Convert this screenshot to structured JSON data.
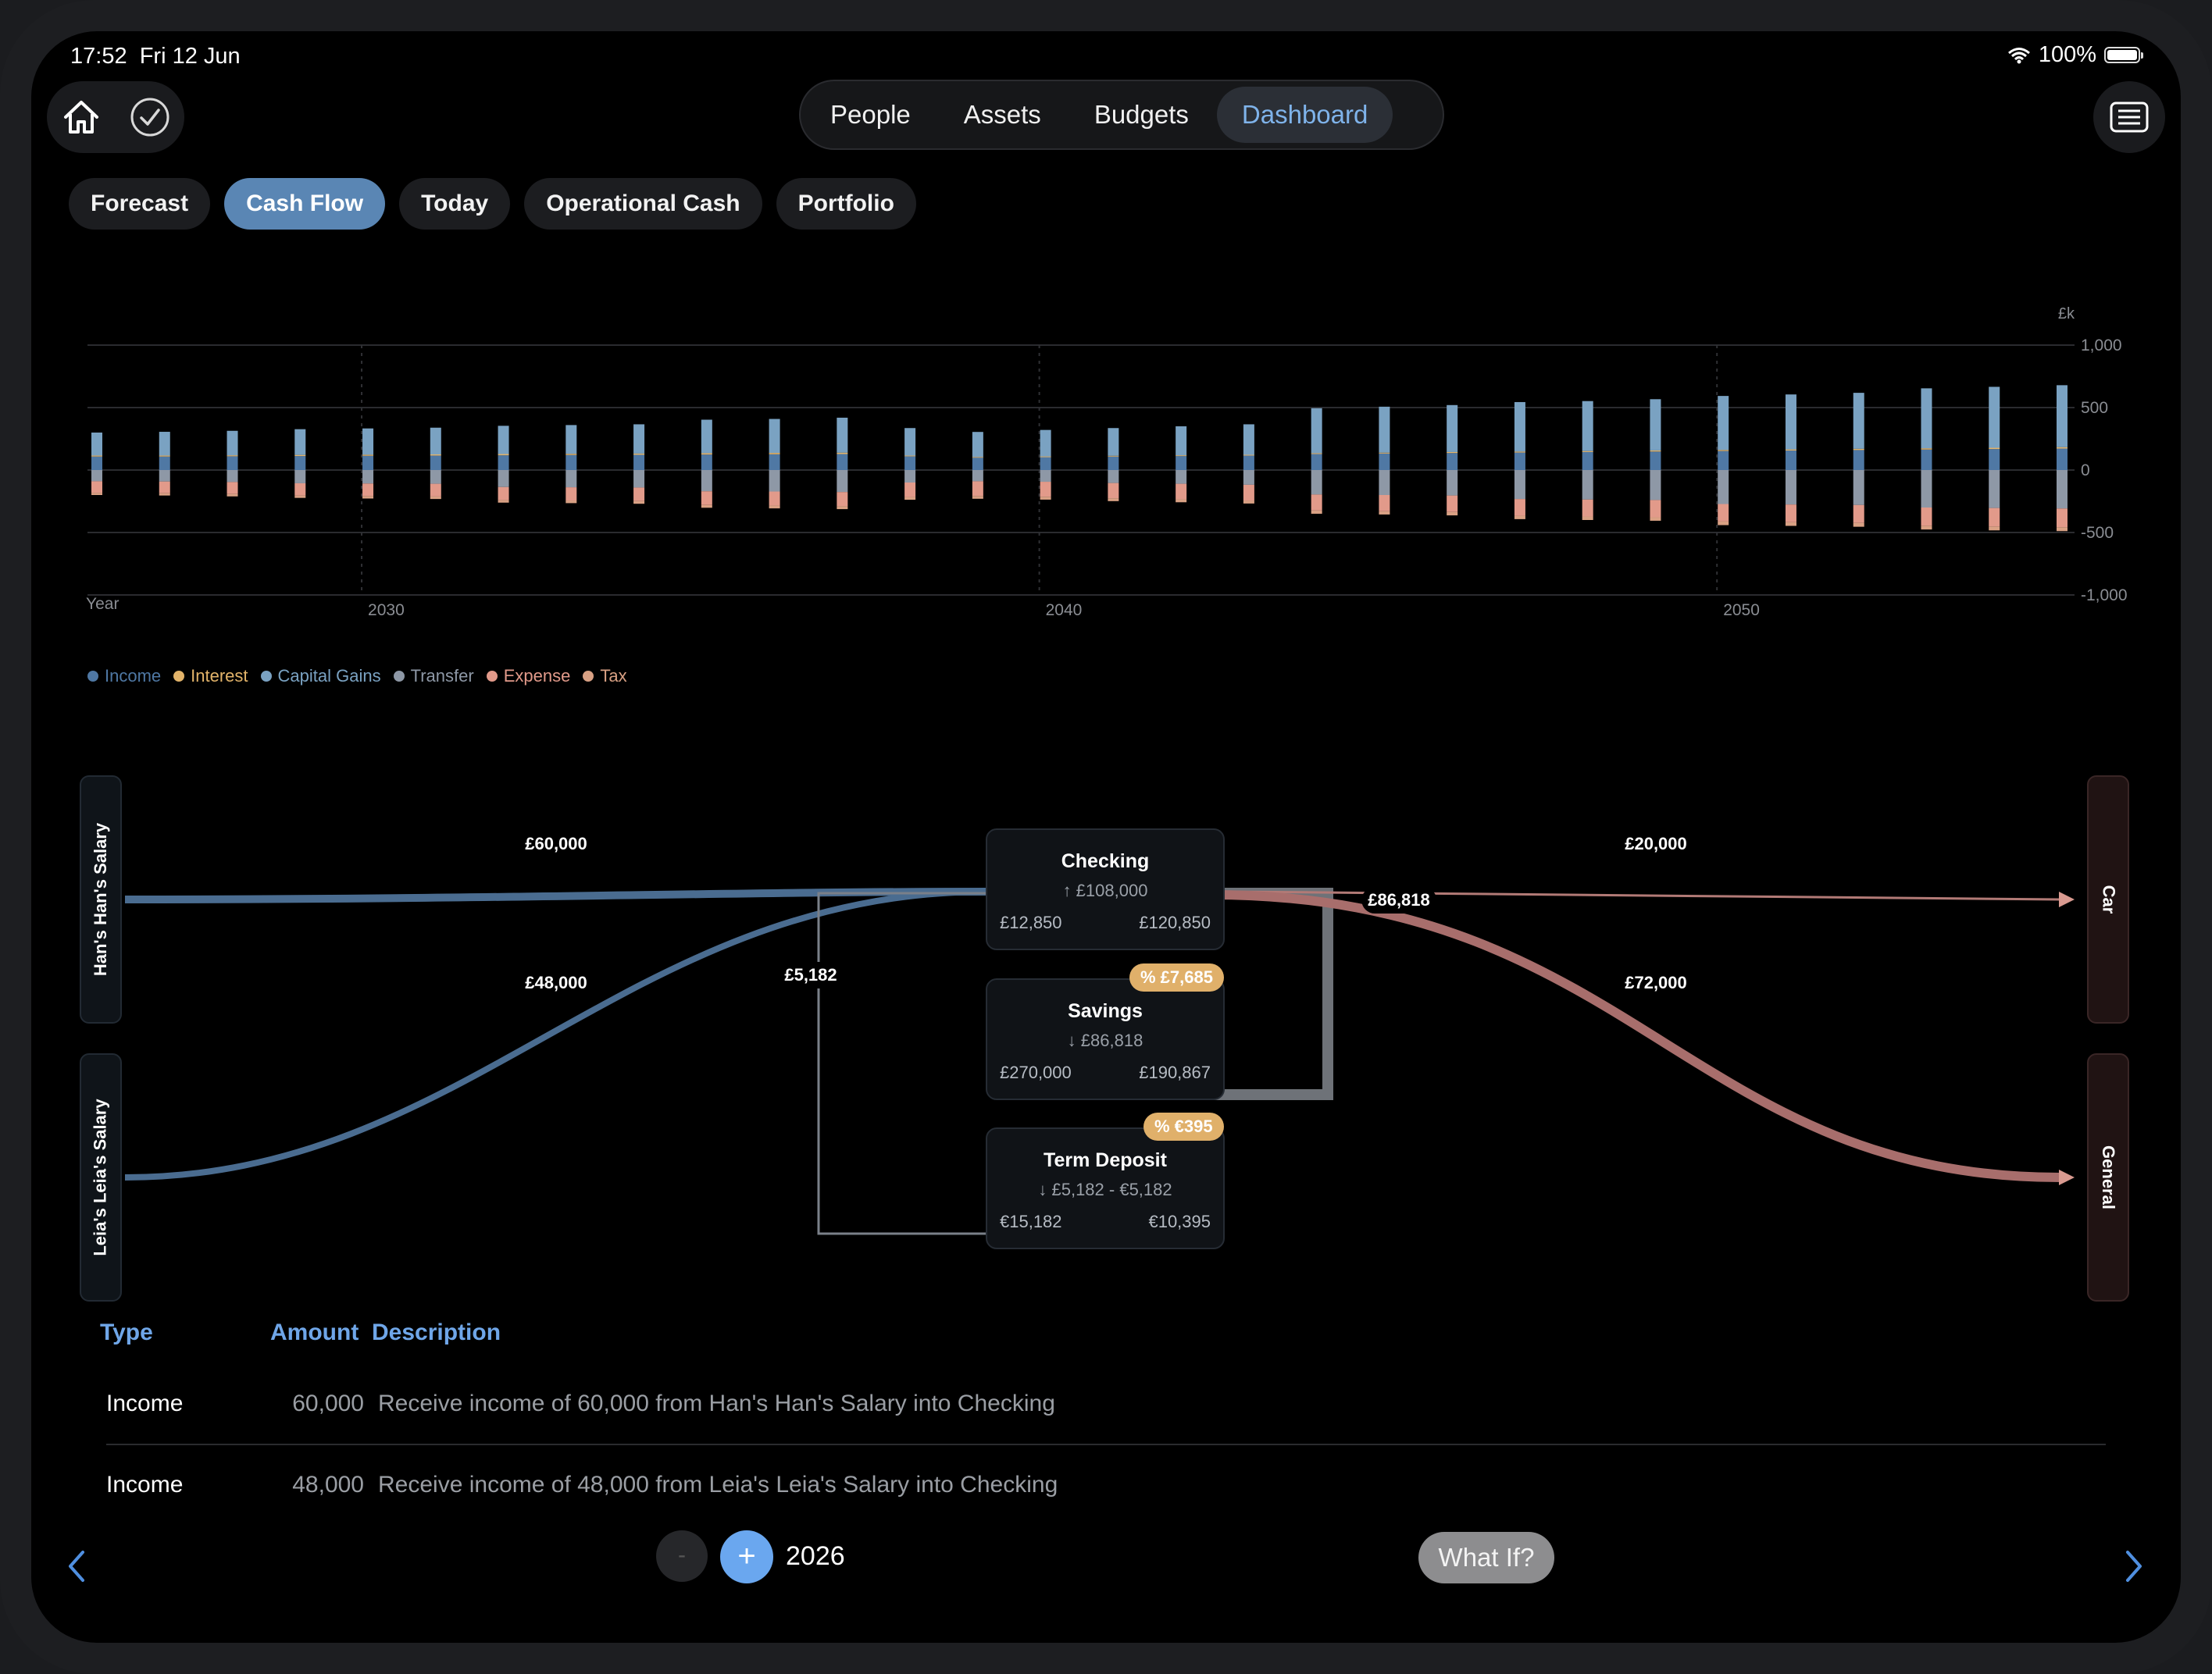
{
  "status_bar": {
    "time": "17:52",
    "date": "Fri 12 Jun",
    "battery": "100%",
    "battery_level": 1.0
  },
  "toolbar": {
    "left_icons": [
      "home-icon",
      "checkmark-circle-icon"
    ],
    "right_icon": "list-icon",
    "tabs": [
      {
        "label": "People",
        "active": false
      },
      {
        "label": "Assets",
        "active": false
      },
      {
        "label": "Budgets",
        "active": false
      },
      {
        "label": "Dashboard",
        "active": true
      }
    ]
  },
  "chips": [
    {
      "label": "Forecast",
      "active": false
    },
    {
      "label": "Cash Flow",
      "active": true
    },
    {
      "label": "Today",
      "active": false
    },
    {
      "label": "Operational Cash",
      "active": false
    },
    {
      "label": "Portfolio",
      "active": false
    }
  ],
  "chart_data": {
    "type": "bar",
    "stacked": true,
    "xlabel": "Year",
    "ylabel": "£k",
    "ylim": [
      -1000,
      1000
    ],
    "yticks": [
      "1,000",
      "500",
      "0",
      "-500",
      "-1,000"
    ],
    "xticks": [
      "2030",
      "2040",
      "2050"
    ],
    "grid": true,
    "x": [
      2026,
      2027,
      2028,
      2029,
      2030,
      2031,
      2032,
      2033,
      2034,
      2035,
      2036,
      2037,
      2038,
      2039,
      2040,
      2041,
      2042,
      2043,
      2044,
      2045,
      2046,
      2047,
      2048,
      2049,
      2050,
      2051,
      2052,
      2053,
      2054,
      2055
    ],
    "series": [
      {
        "name": "Income",
        "color": "#4f78a4",
        "values": [
          108,
          108,
          110,
          112,
          114,
          116,
          118,
          120,
          122,
          124,
          126,
          128,
          110,
          100,
          104,
          108,
          112,
          116,
          128,
          132,
          136,
          140,
          144,
          148,
          152,
          156,
          160,
          164,
          168,
          172
        ]
      },
      {
        "name": "Interest",
        "color": "#e3b46a",
        "values": [
          8,
          8,
          8,
          9,
          9,
          9,
          10,
          10,
          10,
          11,
          11,
          11,
          6,
          5,
          5,
          6,
          6,
          6,
          7,
          7,
          8,
          8,
          8,
          9,
          9,
          9,
          10,
          10,
          10,
          11
        ]
      },
      {
        "name": "Capital Gains",
        "color": "#7aa2c2",
        "values": [
          184,
          190,
          196,
          206,
          210,
          214,
          226,
          230,
          234,
          268,
          272,
          280,
          220,
          200,
          212,
          222,
          232,
          244,
          360,
          368,
          376,
          396,
          400,
          410,
          432,
          440,
          448,
          480,
          488,
          496
        ]
      },
      {
        "name": "Transfer",
        "color": "#8e98a6",
        "values": [
          -90,
          -92,
          -96,
          -106,
          -108,
          -110,
          -136,
          -138,
          -140,
          -170,
          -172,
          -176,
          -100,
          -90,
          -94,
          -104,
          -110,
          -118,
          -196,
          -200,
          -204,
          -232,
          -236,
          -240,
          -272,
          -276,
          -280,
          -300,
          -304,
          -308
        ]
      },
      {
        "name": "Expense",
        "color": "#e29a8a",
        "values": [
          -92,
          -94,
          -96,
          -98,
          -100,
          -102,
          -104,
          -106,
          -108,
          -110,
          -112,
          -114,
          -116,
          -118,
          -120,
          -122,
          -124,
          -126,
          -128,
          -130,
          -132,
          -134,
          -136,
          -138,
          -140,
          -142,
          -144,
          -146,
          -148,
          -150
        ]
      },
      {
        "name": "Tax",
        "color": "#d9a184",
        "values": [
          -18,
          -18,
          -19,
          -19,
          -20,
          -20,
          -21,
          -21,
          -22,
          -22,
          -23,
          -23,
          -22,
          -22,
          -23,
          -23,
          -24,
          -24,
          -26,
          -26,
          -27,
          -27,
          -28,
          -28,
          -29,
          -29,
          -30,
          -30,
          -31,
          -31
        ]
      }
    ],
    "legend": "bottom-left"
  },
  "flow": {
    "sources": [
      "Han's Han's Salary",
      "Leia's Leia's Salary"
    ],
    "sinks": [
      "Car",
      "General"
    ],
    "accounts": [
      {
        "name": "Checking",
        "change": "↑ £108,000",
        "start": "£12,850",
        "end": "£120,850",
        "badge": ""
      },
      {
        "name": "Savings",
        "change": "↓ £86,818",
        "start": "£270,000",
        "end": "£190,867",
        "badge": "% £7,685"
      },
      {
        "name": "Term Deposit",
        "change": "↓ £5,182 - €5,182",
        "start": "€15,182",
        "end": "€10,395",
        "badge": "% €395"
      }
    ],
    "labels": {
      "han_to_checking": "£60,000",
      "leia_to_checking": "£48,000",
      "term_to_checking": "£5,182",
      "savings_to_checking": "£86,818",
      "checking_to_car": "£20,000",
      "checking_to_general": "£72,000"
    }
  },
  "table": {
    "headers": {
      "type": "Type",
      "amount": "Amount",
      "description": "Description"
    },
    "rows": [
      {
        "type": "Income",
        "amount": "60,000",
        "description": "Receive income of 60,000 from Han's Han's Salary into Checking"
      },
      {
        "type": "Income",
        "amount": "48,000",
        "description": "Receive income of 48,000 from Leia's Leia's Salary into Checking"
      }
    ]
  },
  "bottom_bar": {
    "minus": "-",
    "plus": "+",
    "year": "2026",
    "what_if": "What If?"
  }
}
